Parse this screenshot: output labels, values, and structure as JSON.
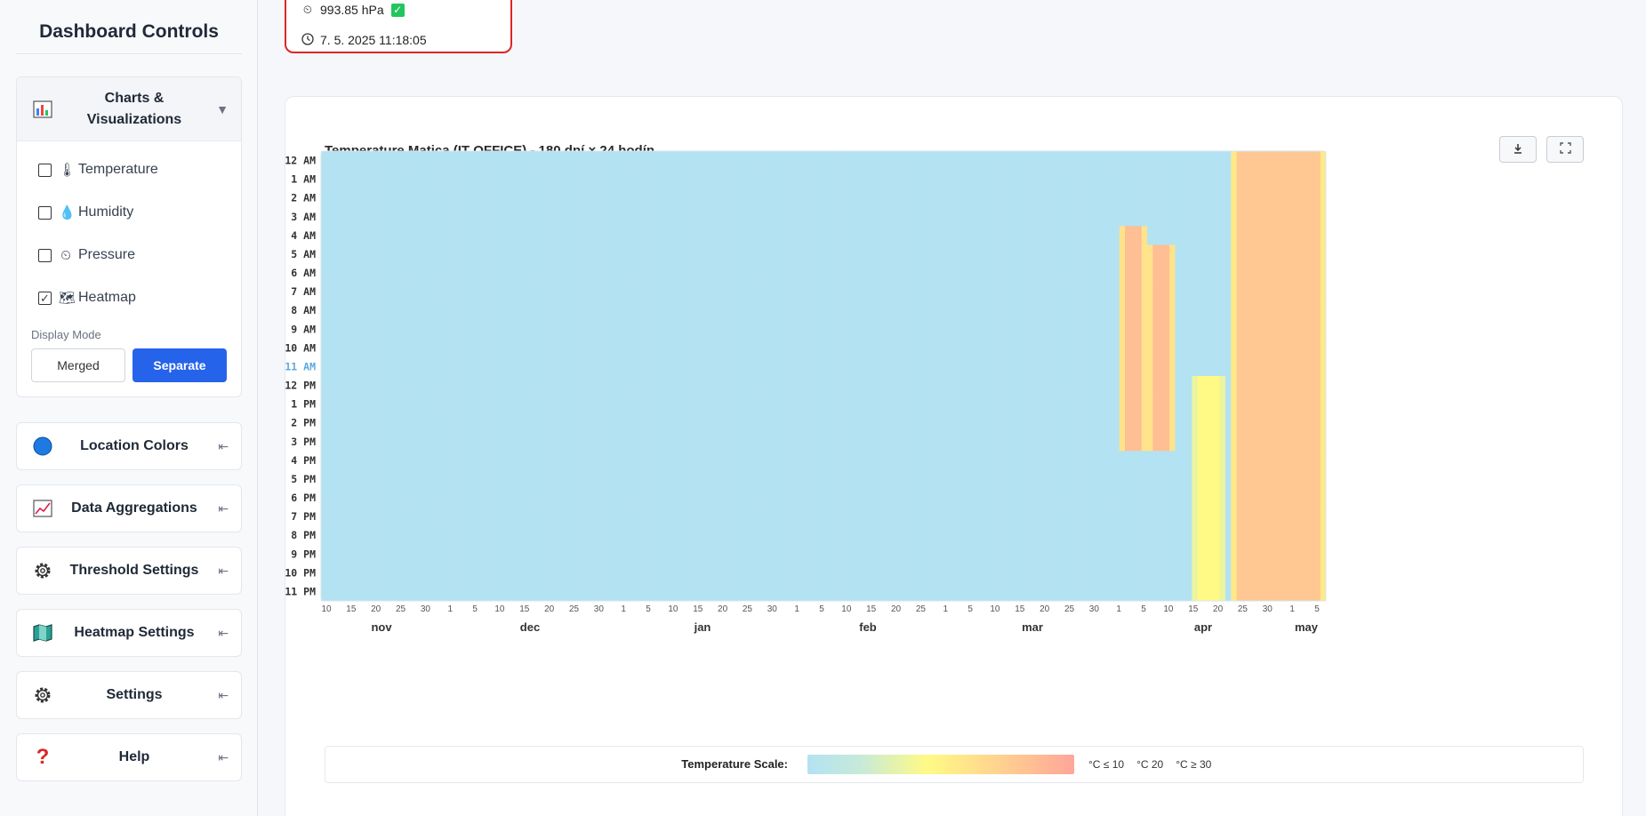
{
  "sidebar": {
    "title": "Dashboard Controls",
    "charts_panel": {
      "label": "Charts & Visualizations",
      "label_line1": "Charts &",
      "label_line2": "Visualizations",
      "icon": "bar-chart-icon",
      "arrow": "▼",
      "items": [
        {
          "label": "Temperature",
          "icon": "thermometer-icon",
          "glyph": "🌡",
          "checked": false
        },
        {
          "label": "Humidity",
          "icon": "droplet-icon",
          "glyph": "💧",
          "checked": false
        },
        {
          "label": "Pressure",
          "icon": "gauge-icon",
          "glyph": "⏲",
          "checked": false
        },
        {
          "label": "Heatmap",
          "icon": "map-icon",
          "glyph": "🗺",
          "checked": true
        }
      ],
      "display_mode_label": "Display Mode",
      "merged_label": "Merged",
      "separate_label": "Separate",
      "active_mode": "Separate"
    },
    "panels": [
      {
        "label": "Location Colors",
        "icon": "circle-icon",
        "arrow": "⇤"
      },
      {
        "label": "Data Aggregations",
        "icon": "line-chart-icon",
        "arrow": "⇤"
      },
      {
        "label": "Threshold Settings",
        "icon": "gear-icon",
        "arrow": "⇤"
      },
      {
        "label": "Heatmap Settings",
        "icon": "map-icon",
        "arrow": "⇤"
      },
      {
        "label": "Settings",
        "icon": "gear-icon",
        "arrow": "⇤"
      },
      {
        "label": "Help",
        "icon": "question-icon",
        "arrow": "⇤"
      }
    ]
  },
  "status_card": {
    "pressure": "993.85 hPa",
    "timestamp": "7. 5. 2025 11:18:05"
  },
  "chart": {
    "download_icon": "download-icon",
    "fullscreen_icon": "fullscreen-icon",
    "legend_title": "Temperature Scale:",
    "legend_low": "°C ≤ 10",
    "legend_mid": "°C 20",
    "legend_high": "°C ≥ 30"
  },
  "chart_data": {
    "type": "heatmap",
    "title": "Temperature Matica (IT OFFICE) - 180 dní × 24 hodín",
    "y_categories": [
      "12 AM",
      "1 AM",
      "2 AM",
      "3 AM",
      "4 AM",
      "5 AM",
      "6 AM",
      "7 AM",
      "8 AM",
      "9 AM",
      "10 AM",
      "11 AM",
      "12 PM",
      "1 PM",
      "2 PM",
      "3 PM",
      "4 PM",
      "5 PM",
      "6 PM",
      "7 PM",
      "8 PM",
      "9 PM",
      "10 PM",
      "11 PM"
    ],
    "highlighted_hour": "11 AM",
    "x_day_ticks": [
      "10",
      "15",
      "20",
      "25",
      "30",
      "1",
      "5",
      "10",
      "15",
      "20",
      "25",
      "30",
      "1",
      "5",
      "10",
      "15",
      "20",
      "25",
      "30",
      "1",
      "5",
      "10",
      "15",
      "20",
      "25",
      "1",
      "5",
      "10",
      "15",
      "20",
      "25",
      "30",
      "1",
      "5",
      "10",
      "15",
      "20",
      "25",
      "30",
      "1",
      "5"
    ],
    "x_months": [
      "nov",
      "dec",
      "jan",
      "feb",
      "mar",
      "apr",
      "may"
    ],
    "days": 180,
    "hours": 24,
    "color_scale": {
      "min": 10,
      "mid": 20,
      "max": 30,
      "colors": [
        "#b3e2f2",
        "#fffa85",
        "#ffa59a"
      ]
    },
    "baseline_temperature": 10,
    "warm_periods": [
      {
        "from_day": 163,
        "to_day": 179,
        "temperature": 26
      },
      {
        "from_day": 143,
        "to_day": 147,
        "hours": "4 AM-3 PM",
        "temperature": 27
      },
      {
        "from_day": 148,
        "to_day": 152,
        "hours": "5 AM-3 PM",
        "temperature": 27
      },
      {
        "from_day": 156,
        "to_day": 161,
        "hours": "12 PM-11 PM",
        "temperature": 20
      }
    ]
  }
}
